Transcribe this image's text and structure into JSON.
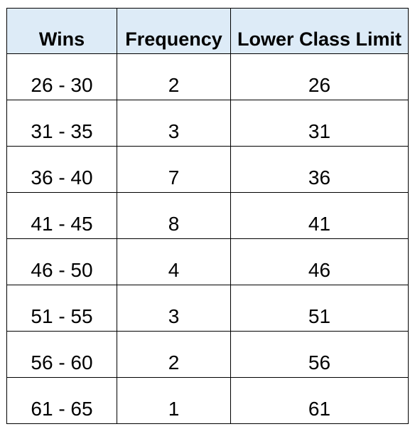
{
  "table": {
    "headers": [
      "Wins",
      "Frequency",
      "Lower Class Limit"
    ],
    "rows": [
      [
        "26 - 30",
        "2",
        "26"
      ],
      [
        "31 - 35",
        "3",
        "31"
      ],
      [
        "36 - 40",
        "7",
        "36"
      ],
      [
        "41 - 45",
        "8",
        "41"
      ],
      [
        "46 - 50",
        "4",
        "46"
      ],
      [
        "51 - 55",
        "3",
        "51"
      ],
      [
        "56 - 60",
        "2",
        "56"
      ],
      [
        "61 - 65",
        "1",
        "61"
      ]
    ]
  },
  "colors": {
    "header_fill": "#ddebf7",
    "border": "#000000"
  }
}
